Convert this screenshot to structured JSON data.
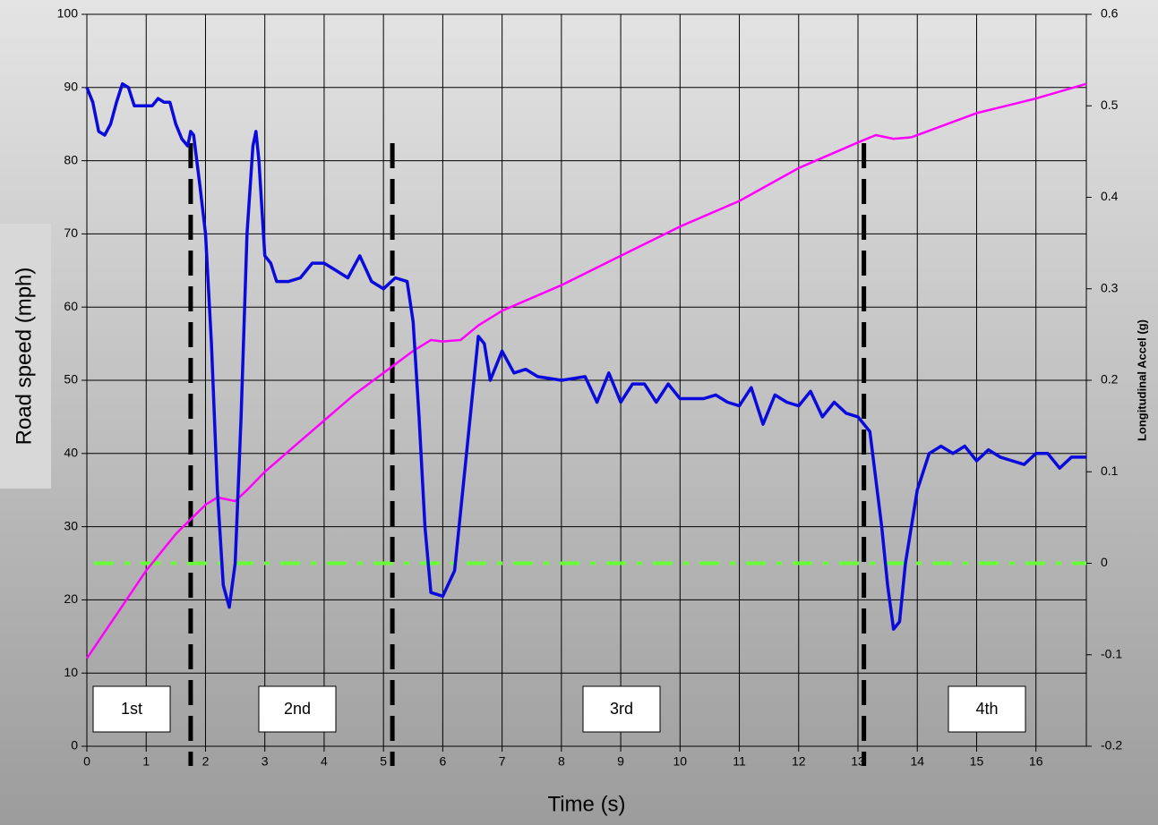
{
  "chart_data": {
    "type": "line",
    "xlabel": "Time (s)",
    "ylabel": "Road speed (mph)",
    "y2label": "Longitudinal Accel (g)",
    "xlim": [
      0,
      16.85
    ],
    "xticks": [
      0,
      1,
      2,
      3,
      4,
      5,
      6,
      7,
      8,
      9,
      10,
      11,
      12,
      13,
      14,
      15,
      16
    ],
    "ylim": [
      0,
      100
    ],
    "yticks": [
      0,
      10,
      20,
      30,
      40,
      50,
      60,
      70,
      80,
      90,
      100
    ],
    "y2lim": [
      -0.2,
      0.6
    ],
    "y2ticks": [
      -0.2,
      -0.1,
      0,
      0.1,
      0.2,
      0.3,
      0.4,
      0.5,
      0.6
    ],
    "grid": true,
    "series": [
      {
        "color": "#ff00ff",
        "x": [
          0,
          0.5,
          1.0,
          1.5,
          1.75,
          2.0,
          2.2,
          2.5,
          2.7,
          3.0,
          3.5,
          4.0,
          4.5,
          5.0,
          5.5,
          5.8,
          6.0,
          6.3,
          6.6,
          7.0,
          8.0,
          9.0,
          10.0,
          11.0,
          12.0,
          13.0,
          13.3,
          13.6,
          13.9,
          14.5,
          15.0,
          16.0,
          16.85
        ],
        "values": [
          12,
          18,
          24,
          29,
          31,
          33,
          34,
          33.5,
          35,
          37.5,
          41,
          44.5,
          48,
          51,
          54,
          55.5,
          55.3,
          55.5,
          57.5,
          59.5,
          63,
          67,
          71,
          74.5,
          79,
          82.5,
          83.5,
          83,
          83.2,
          85,
          86.5,
          88.5,
          90.5
        ]
      },
      {
        "color": "#0a0adc",
        "axis": "y2",
        "x": [
          0,
          0.1,
          0.2,
          0.3,
          0.4,
          0.5,
          0.6,
          0.7,
          0.8,
          1.0,
          1.1,
          1.2,
          1.3,
          1.4,
          1.5,
          1.6,
          1.7,
          1.75,
          1.8,
          1.9,
          2.0,
          2.1,
          2.2,
          2.3,
          2.4,
          2.5,
          2.6,
          2.7,
          2.8,
          2.85,
          2.9,
          3.0,
          3.1,
          3.2,
          3.4,
          3.6,
          3.8,
          4.0,
          4.2,
          4.4,
          4.6,
          4.8,
          5.0,
          5.2,
          5.4,
          5.5,
          5.6,
          5.7,
          5.8,
          6.0,
          6.2,
          6.4,
          6.6,
          6.7,
          6.8,
          7.0,
          7.2,
          7.4,
          7.6,
          8.0,
          8.4,
          8.6,
          8.8,
          9.0,
          9.2,
          9.4,
          9.6,
          9.8,
          10.0,
          10.4,
          10.6,
          10.8,
          11.0,
          11.2,
          11.4,
          11.6,
          11.8,
          12.0,
          12.2,
          12.4,
          12.6,
          12.8,
          13.0,
          13.2,
          13.4,
          13.5,
          13.6,
          13.7,
          13.8,
          13.9,
          14.0,
          14.2,
          14.4,
          14.6,
          14.8,
          15.0,
          15.2,
          15.4,
          15.6,
          15.8,
          16.0,
          16.2,
          16.4,
          16.6,
          16.85
        ],
        "values": [
          0.52,
          0.504,
          0.472,
          0.468,
          0.48,
          0.504,
          0.524,
          0.52,
          0.5,
          0.5,
          0.5,
          0.508,
          0.504,
          0.504,
          0.48,
          0.464,
          0.456,
          0.472,
          0.468,
          0.416,
          0.36,
          0.24,
          0.08,
          -0.024,
          -0.048,
          0,
          0.16,
          0.36,
          0.456,
          0.472,
          0.44,
          0.336,
          0.328,
          0.308,
          0.308,
          0.312,
          0.328,
          0.328,
          0.32,
          0.312,
          0.336,
          0.308,
          0.3,
          0.312,
          0.308,
          0.264,
          0.16,
          0.04,
          -0.032,
          -0.036,
          -0.008,
          0.12,
          0.248,
          0.24,
          0.2,
          0.232,
          0.208,
          0.212,
          0.204,
          0.2,
          0.204,
          0.176,
          0.208,
          0.176,
          0.196,
          0.196,
          0.176,
          0.196,
          0.18,
          0.18,
          0.184,
          0.176,
          0.172,
          0.192,
          0.152,
          0.184,
          0.176,
          0.172,
          0.188,
          0.16,
          0.176,
          0.164,
          0.16,
          0.144,
          0.04,
          -0.024,
          -0.072,
          -0.064,
          0,
          0.04,
          0.08,
          0.12,
          0.128,
          0.12,
          0.128,
          0.112,
          0.124,
          0.116,
          0.112,
          0.108,
          0.12,
          0.12,
          0.104,
          0.116,
          0.116
        ]
      }
    ],
    "reference_line": {
      "value": 0,
      "axis": "y2",
      "color": "#66ff33"
    },
    "shift_lines": [
      1.75,
      5.15,
      13.1
    ],
    "annotations": [
      "1st",
      "2nd",
      "3rd",
      "4th"
    ]
  }
}
